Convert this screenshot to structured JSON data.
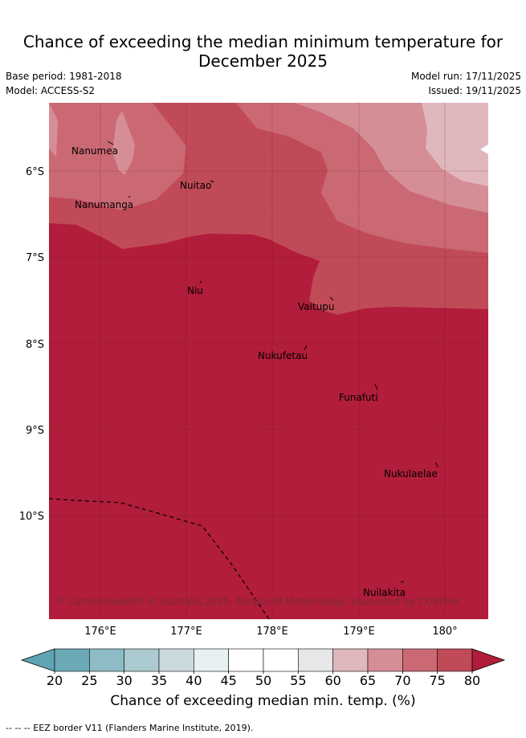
{
  "title": "Chance of exceeding the median minimum temperature for December 2025",
  "meta": {
    "base_period": "Base period: 1981-2018",
    "model": "Model: ACCESS-S2",
    "model_run": "Model run: 17/11/2025",
    "issued": "Issued: 19/11/2025"
  },
  "map": {
    "lat_labels": [
      "6°S",
      "7°S",
      "8°S",
      "9°S",
      "10°S"
    ],
    "lon_labels": [
      "176°E",
      "177°E",
      "178°E",
      "179°E",
      "180°"
    ],
    "places": [
      "Nanumea",
      "Nuitao",
      "Nanumanga",
      "Niu",
      "Vaitupu",
      "Nukufetau",
      "Funafuti",
      "Nukulaelae",
      "Nuilakita"
    ],
    "copyright": "© Commonwealth of Australia 2025, Bureau of Meteorology, supported by COSPPac",
    "colors": {
      "c80": "#b11d3a",
      "c75": "#c14a58",
      "c70": "#ca6974",
      "c65": "#d68e96",
      "c60": "#e0b7bd",
      "grid": "#5a1020"
    }
  },
  "colorbar": {
    "ticks": [
      "20",
      "25",
      "30",
      "35",
      "40",
      "45",
      "50",
      "55",
      "60",
      "65",
      "70",
      "75",
      "80"
    ],
    "colors": [
      "#6ba9b7",
      "#8dbbc6",
      "#abcbd1",
      "#cad9de",
      "#e9f0f2",
      "#ffffff",
      "#ffffff",
      "#e7e7e9",
      "#e0b7bd",
      "#d68e96",
      "#ca6974",
      "#c14a58"
    ],
    "low_color": "#5fa4b3",
    "high_color": "#b11d3a",
    "label": "Chance of exceeding median min. temp. (%)"
  },
  "footnote": "--  --  -- EEZ border V11 (Flanders Marine Institute, 2019)."
}
